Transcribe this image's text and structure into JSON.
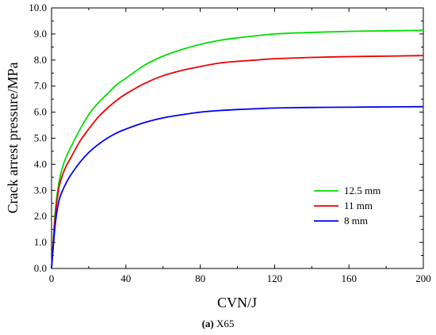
{
  "chart_data": {
    "type": "line",
    "xlabel": "CVN/J",
    "ylabel": "Crack arrest pressure/MPa",
    "xlim": [
      0,
      200
    ],
    "ylim": [
      0,
      10
    ],
    "x_ticks": [
      0,
      40,
      80,
      120,
      160,
      200
    ],
    "y_ticks": [
      0,
      1,
      2,
      3,
      4,
      5,
      6,
      7,
      8,
      9,
      10
    ],
    "y_tick_labels": [
      "0.0",
      "1.0",
      "2.0",
      "3.0",
      "4.0",
      "5.0",
      "6.0",
      "7.0",
      "8.0",
      "9.0",
      "10.0"
    ],
    "x_tick_labels": [
      "0",
      "40",
      "80",
      "120",
      "160",
      "200"
    ],
    "legend_position": "lower-right",
    "grid": false,
    "series": [
      {
        "name": "12.5 mm",
        "color": "#00dd00",
        "x": [
          0,
          2,
          4,
          6,
          8,
          10,
          15,
          20,
          25,
          30,
          35,
          40,
          50,
          60,
          70,
          80,
          90,
          100,
          110,
          120,
          140,
          160,
          180,
          200
        ],
        "y": [
          0,
          2.2,
          3.3,
          3.9,
          4.3,
          4.6,
          5.3,
          5.9,
          6.35,
          6.7,
          7.05,
          7.3,
          7.8,
          8.15,
          8.4,
          8.6,
          8.75,
          8.85,
          8.93,
          9.0,
          9.06,
          9.1,
          9.12,
          9.14
        ]
      },
      {
        "name": "11 mm",
        "color": "#ee0000",
        "x": [
          0,
          2,
          4,
          6,
          8,
          10,
          15,
          20,
          25,
          30,
          35,
          40,
          50,
          60,
          70,
          80,
          90,
          100,
          110,
          120,
          140,
          160,
          180,
          200
        ],
        "y": [
          0,
          2.0,
          3.1,
          3.6,
          3.95,
          4.2,
          4.85,
          5.35,
          5.8,
          6.15,
          6.45,
          6.7,
          7.1,
          7.4,
          7.6,
          7.75,
          7.88,
          7.95,
          8.0,
          8.05,
          8.1,
          8.13,
          8.15,
          8.17
        ]
      },
      {
        "name": "8 mm",
        "color": "#0000ee",
        "x": [
          0,
          2,
          4,
          6,
          8,
          10,
          15,
          20,
          25,
          30,
          35,
          40,
          50,
          60,
          70,
          80,
          90,
          100,
          110,
          120,
          140,
          160,
          180,
          200
        ],
        "y": [
          0,
          1.7,
          2.6,
          3.0,
          3.3,
          3.55,
          4.05,
          4.45,
          4.75,
          5.0,
          5.2,
          5.35,
          5.6,
          5.78,
          5.9,
          6.0,
          6.06,
          6.1,
          6.13,
          6.16,
          6.18,
          6.19,
          6.2,
          6.21
        ]
      }
    ]
  },
  "caption": {
    "label": "(a)",
    "text": " X65"
  }
}
